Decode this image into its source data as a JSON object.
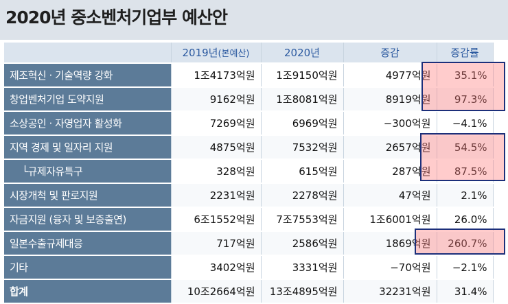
{
  "title": "2020년 중소벤처기업부 예산안",
  "columns": {
    "category": "",
    "y2019": "2019년",
    "y2019_note": "(본예산)",
    "y2020": "2020년",
    "change": "증감",
    "rate": "증감률"
  },
  "rows": [
    {
      "label": "제조혁신 · 기술역량 강화",
      "y2019": "1조4173억원",
      "y2020": "1조9150억원",
      "change": "4977억원",
      "rate": "35.1%"
    },
    {
      "label": "창업벤처기업 도약지원",
      "y2019": "9162억원",
      "y2020": "1조8081억원",
      "change": "8919억원",
      "rate": "97.3%"
    },
    {
      "label": "소상공인 · 자영업자 활성화",
      "y2019": "7269억원",
      "y2020": "6969억원",
      "change": "−300억원",
      "rate": "−4.1%"
    },
    {
      "label": "지역 경제 및 일자리 지원",
      "y2019": "4875억원",
      "y2020": "7532억원",
      "change": "2657억원",
      "rate": "54.5%"
    },
    {
      "label": "└규제자유특구",
      "y2019": "328억원",
      "y2020": "615억원",
      "change": "287억원",
      "rate": "87.5%"
    },
    {
      "label": "시장개척 및 판로지원",
      "y2019": "2231억원",
      "y2020": "2278억원",
      "change": "47억원",
      "rate": "2.1%"
    },
    {
      "label": "자금지원 (융자 및 보증출연)",
      "y2019": "6조1552억원",
      "y2020": "7조7553억원",
      "change": "1조6001억원",
      "rate": "26.0%"
    },
    {
      "label": "일본수출규제대응",
      "y2019": "717억원",
      "y2020": "2586억원",
      "change": "1869억원",
      "rate": "260.7%"
    },
    {
      "label": "기타",
      "y2019": "3402억원",
      "y2020": "3331억원",
      "change": "−70억원",
      "rate": "−2.1%"
    },
    {
      "label": "합계",
      "y2019": "10조2664억원",
      "y2020": "13조4895억원",
      "change": "32231억원",
      "rate": "31.4%"
    }
  ],
  "colors": {
    "label_bg": "#5c7b98",
    "header_bg": "#dbe4ee",
    "header_text": "#2c5aa0",
    "highlight_fill": "#ff7878",
    "highlight_border": "#1c2f7a"
  }
}
